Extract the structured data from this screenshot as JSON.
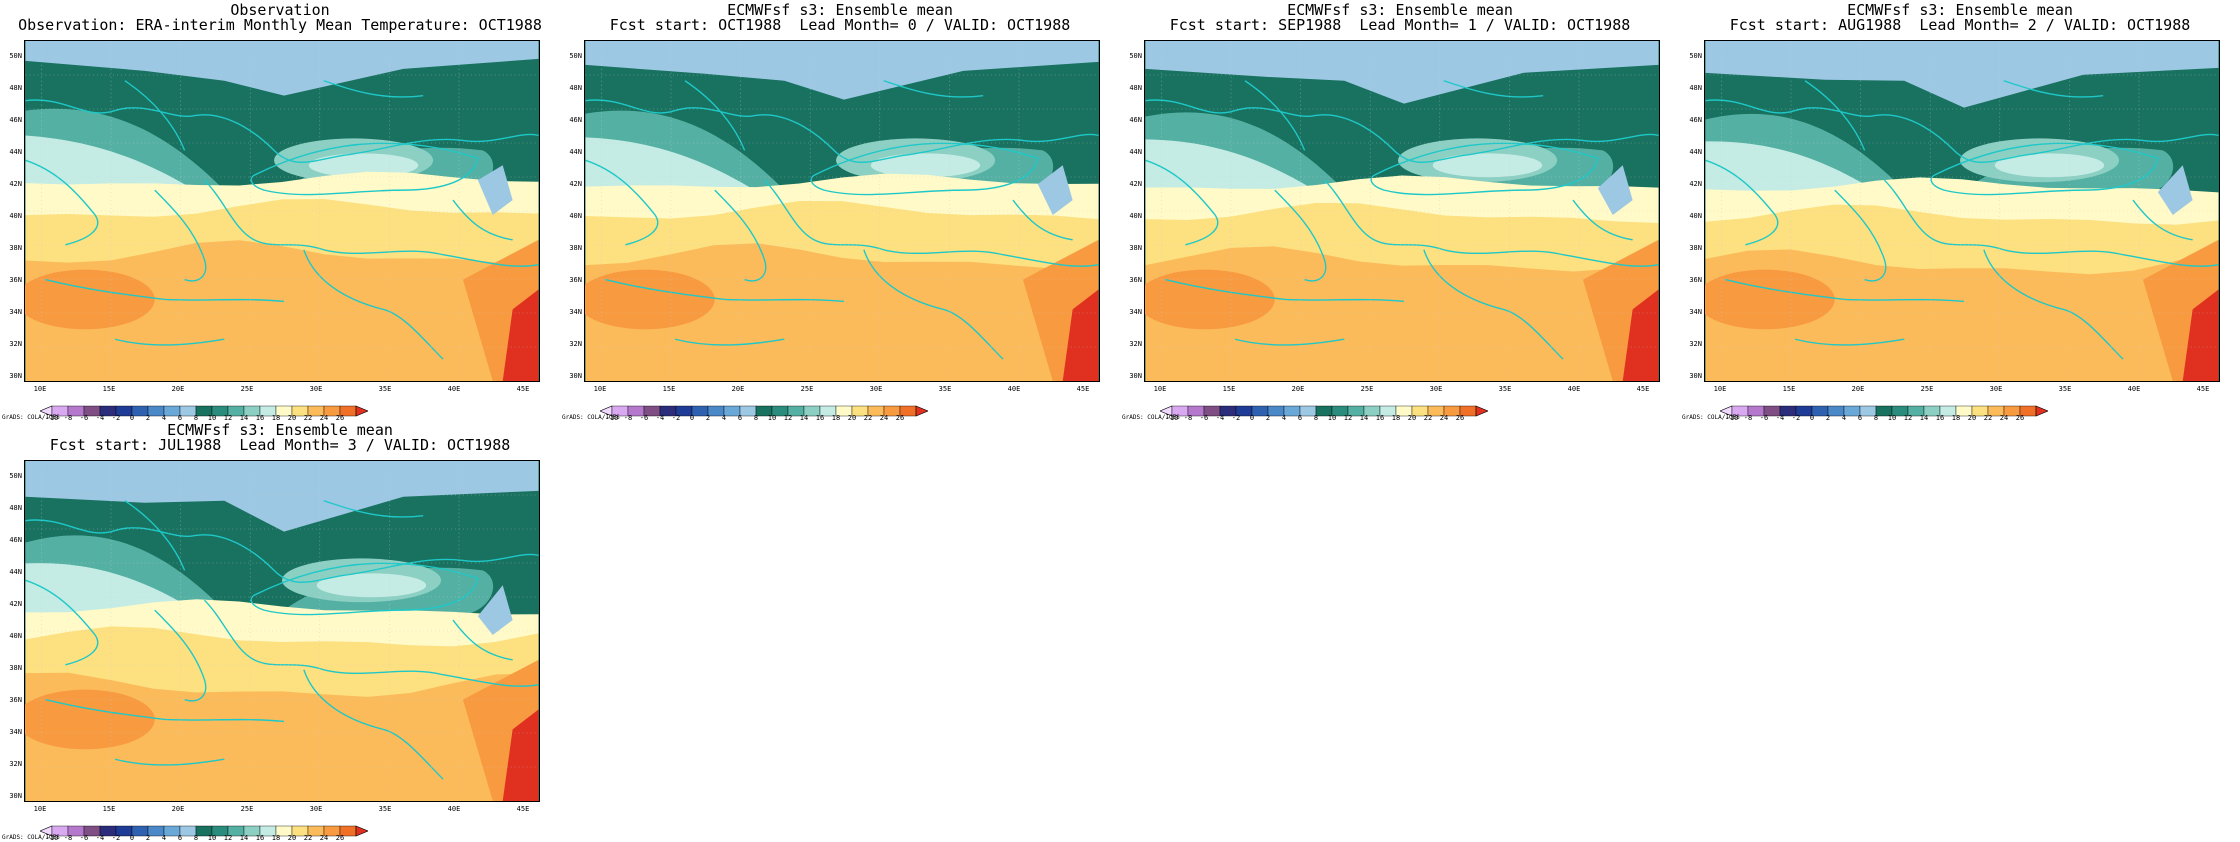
{
  "panels": [
    {
      "title1": "Observation",
      "title2": "Observation: ERA-interim Monthly Mean Temperature: OCT1988"
    },
    {
      "title1": "ECMWFsf s3: Ensemble mean",
      "title2": "Fcst start: OCT1988  Lead Month= 0 / VALID: OCT1988"
    },
    {
      "title1": "ECMWFsf s3: Ensemble mean",
      "title2": "Fcst start: SEP1988  Lead Month= 1 / VALID: OCT1988"
    },
    {
      "title1": "ECMWFsf s3: Ensemble mean",
      "title2": "Fcst start: AUG1988  Lead Month= 2 / VALID: OCT1988"
    },
    {
      "title1": "ECMWFsf s3: Ensemble mean",
      "title2": "Fcst start: JUL1988  Lead Month= 3 / VALID: OCT1988"
    }
  ],
  "y_axis_labels": [
    "50N",
    "48N",
    "46N",
    "44N",
    "42N",
    "40N",
    "38N",
    "36N",
    "34N",
    "32N",
    "30N"
  ],
  "x_axis_labels": [
    "10E",
    "15E",
    "20E",
    "25E",
    "30E",
    "35E",
    "40E",
    "45E"
  ],
  "colorbar": {
    "labels": [
      "-10",
      "-8",
      "-6",
      "-4",
      "-2",
      "0",
      "2",
      "4",
      "6",
      "8",
      "10",
      "12",
      "14",
      "16",
      "18",
      "20",
      "22",
      "24",
      "26"
    ],
    "colors": [
      "#f0d8ff",
      "#d8a8f0",
      "#b478cc",
      "#7e4e84",
      "#2c2c7c",
      "#1e3c96",
      "#2e62b0",
      "#4a88c8",
      "#6aa8d8",
      "#9cc8e4",
      "#19715f",
      "#2a8c7c",
      "#55b0a4",
      "#8cd0c4",
      "#c4ece4",
      "#fffac8",
      "#fde080",
      "#fbbb5a",
      "#f89a40",
      "#f07028",
      "#e03020"
    ],
    "credit": "GrADS: COLA/IGES"
  }
}
